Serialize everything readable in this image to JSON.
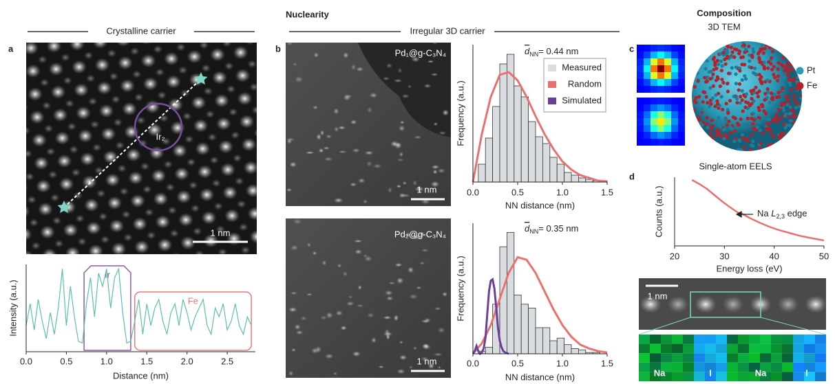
{
  "headers": {
    "nuclearity": "Nuclearity",
    "composition": "Composition",
    "tem": "3D TEM",
    "crystalline": "Crystalline carrier",
    "irregular": "Irregular 3D carrier"
  },
  "panel_labels": [
    "a",
    "b",
    "c",
    "d"
  ],
  "images": {
    "a_site": "Ir₂",
    "a_scale": "1 nm",
    "b1_sample": "Pd₁@g-C₃N₄",
    "b1_scale": "1 nm",
    "b2_sample": "Pd₂@g-C₃N₄",
    "b2_scale": "1 nm",
    "c_legend": [
      {
        "name": "Pt",
        "color": "#2a9bb7"
      },
      {
        "name": "Fe",
        "color": "#b5202a"
      }
    ],
    "d_scale": "1 nm",
    "d_elements": [
      "Na",
      "I",
      "Na",
      "I"
    ]
  },
  "chart_data": [
    {
      "type": "line",
      "xlabel": "Distance (nm)",
      "ylabel": "Intensity (a.u.)",
      "color": "#5bbfad",
      "x": [
        0,
        0.05,
        0.1,
        0.15,
        0.2,
        0.25,
        0.3,
        0.35,
        0.4,
        0.45,
        0.5,
        0.55,
        0.6,
        0.65,
        0.7,
        0.75,
        0.8,
        0.85,
        0.9,
        0.95,
        1.0,
        1.05,
        1.1,
        1.15,
        1.2,
        1.25,
        1.3,
        1.35,
        1.4,
        1.45,
        1.5,
        1.55,
        1.6,
        1.65,
        1.7,
        1.75,
        1.8,
        1.85,
        1.9,
        1.95,
        2.0,
        2.05,
        2.1,
        2.15,
        2.2,
        2.25,
        2.3,
        2.35,
        2.4,
        2.45,
        2.5,
        2.55,
        2.6,
        2.65,
        2.7,
        2.75,
        2.8
      ],
      "values": [
        0.3,
        0.55,
        0.25,
        0.6,
        0.35,
        0.15,
        0.45,
        0.2,
        0.5,
        0.95,
        0.3,
        0.75,
        0.4,
        0.12,
        0.1,
        0.55,
        0.85,
        0.4,
        0.9,
        0.75,
        0.95,
        0.5,
        0.85,
        0.95,
        0.45,
        0.1,
        0.12,
        0.35,
        0.6,
        0.2,
        0.55,
        0.3,
        0.5,
        0.6,
        0.35,
        0.2,
        0.45,
        0.55,
        0.3,
        0.6,
        0.45,
        0.25,
        0.4,
        0.5,
        0.6,
        0.3,
        0.2,
        0.5,
        0.4,
        0.55,
        0.25,
        0.35,
        0.55,
        0.3,
        0.2,
        0.4,
        0.3
      ],
      "xlim": [
        0,
        2.85
      ],
      "ylim": [
        0,
        1
      ],
      "xticks": [
        {
          "value": 0,
          "label": "0.0"
        },
        0.5,
        {
          "value": 1,
          "label": "1.0"
        },
        1.5,
        {
          "value": 2,
          "label": "2.0"
        },
        2.5
      ],
      "regions": [
        {
          "label": "Ir",
          "x": [
            0.72,
            1.3
          ],
          "color": "#8b5ca8"
        },
        {
          "label": "Fe",
          "x": [
            1.35,
            2.8
          ],
          "color": "#e8787a"
        }
      ]
    },
    {
      "type": "histogram",
      "xlabel": "NN distance (nm)",
      "ylabel": "Frequency (a.u.)",
      "annotation": {
        "symbol": "d",
        "subscript": "NN",
        "text": "= 0.44 nm"
      },
      "bins": [
        0.06,
        0.14,
        0.22,
        0.3,
        0.38,
        0.46,
        0.54,
        0.62,
        0.7,
        0.78,
        0.86,
        0.94,
        1.02,
        1.1,
        1.18,
        1.26,
        1.34,
        1.42,
        1.5
      ],
      "values": [
        0.13,
        0.32,
        0.55,
        0.86,
        0.93,
        0.7,
        0.62,
        0.44,
        0.33,
        0.28,
        0.18,
        0.13,
        0.07,
        0.05,
        0.03,
        0.02,
        0.01,
        0.01
      ],
      "color": "#d9dde0",
      "curves": [
        {
          "color": "#e8716f",
          "x": [
            0,
            0.1,
            0.2,
            0.3,
            0.4,
            0.5,
            0.6,
            0.7,
            0.8,
            0.9,
            1.0,
            1.1,
            1.2,
            1.3,
            1.4,
            1.5
          ],
          "values": [
            0,
            0.35,
            0.62,
            0.78,
            0.8,
            0.74,
            0.62,
            0.48,
            0.35,
            0.24,
            0.15,
            0.09,
            0.05,
            0.03,
            0.01,
            0.005
          ]
        }
      ],
      "legend": {
        "position": "upper right",
        "entries": [
          {
            "name": "Measured",
            "color": "#d9dde0"
          },
          {
            "name": "Random",
            "color": "#e8716f"
          },
          {
            "name": "Simulated",
            "color": "#6b3f98"
          }
        ]
      },
      "xlim": [
        0,
        1.5
      ],
      "ylim": [
        0,
        1
      ],
      "xticks": [
        {
          "value": 0,
          "label": "0.0"
        },
        0.5,
        {
          "value": 1,
          "label": "1.0"
        },
        1.5
      ]
    },
    {
      "type": "histogram",
      "xlabel": "NN distance (nm)",
      "ylabel": "Frequency (a.u.)",
      "annotation": {
        "symbol": "d",
        "subscript": "NN",
        "text": "= 0.35 nm"
      },
      "bins": [
        0.06,
        0.14,
        0.22,
        0.3,
        0.38,
        0.46,
        0.54,
        0.62,
        0.7,
        0.78,
        0.86,
        0.94,
        1.02,
        1.1,
        1.18,
        1.26,
        1.34,
        1.42,
        1.5
      ],
      "values": [
        0.02,
        0.05,
        0.38,
        0.82,
        0.93,
        0.45,
        0.38,
        0.35,
        0.2,
        0.2,
        0.1,
        0.12,
        0.07,
        0.04,
        0.03,
        0.01,
        0.01,
        0
      ],
      "color": "#d9dde0",
      "curves": [
        {
          "color": "#e8716f",
          "x": [
            0,
            0.1,
            0.2,
            0.3,
            0.4,
            0.5,
            0.6,
            0.7,
            0.8,
            0.9,
            1.0,
            1.1,
            1.2,
            1.3,
            1.4,
            1.5
          ],
          "values": [
            0,
            0.08,
            0.22,
            0.42,
            0.62,
            0.74,
            0.72,
            0.62,
            0.48,
            0.34,
            0.22,
            0.13,
            0.07,
            0.04,
            0.02,
            0.01
          ]
        },
        {
          "color": "#6b3f98",
          "x": [
            0,
            0.02,
            0.04,
            0.06,
            0.08,
            0.1,
            0.12,
            0.14,
            0.16,
            0.18,
            0.2,
            0.22,
            0.24,
            0.26,
            0.28,
            0.3,
            0.32,
            0.34,
            0.36,
            0.4
          ],
          "values": [
            0,
            0.02,
            0.06,
            0.02,
            0,
            0.01,
            0.04,
            0.12,
            0.3,
            0.48,
            0.56,
            0.57,
            0.5,
            0.36,
            0.2,
            0.1,
            0.05,
            0.02,
            0.01,
            0
          ]
        }
      ],
      "xlim": [
        0,
        1.5
      ],
      "ylim": [
        0,
        1
      ],
      "xticks": [
        {
          "value": 0,
          "label": "0.0"
        },
        0.5,
        {
          "value": 1,
          "label": "1.0"
        },
        1.5
      ]
    },
    {
      "type": "line",
      "title": "Single-atom EELS",
      "xlabel": "Energy loss (eV)",
      "ylabel": "Counts (a.u.)",
      "color": "#e8716f",
      "annotation": {
        "prefix": "Na ",
        "symbol": "L",
        "subscript": "2,3",
        "text": " edge"
      },
      "x": [
        23.5,
        25,
        26.5,
        28,
        29.5,
        31,
        32,
        32.8,
        33.5,
        35,
        37,
        39,
        41,
        43,
        45,
        47,
        50
      ],
      "values": [
        0.96,
        0.9,
        0.83,
        0.74,
        0.65,
        0.57,
        0.52,
        0.48,
        0.47,
        0.41,
        0.34,
        0.28,
        0.23,
        0.19,
        0.15,
        0.12,
        0.08
      ],
      "xlim": [
        20,
        50
      ],
      "ylim": [
        0,
        1
      ],
      "xticks": [
        20,
        30,
        40,
        50
      ]
    }
  ]
}
